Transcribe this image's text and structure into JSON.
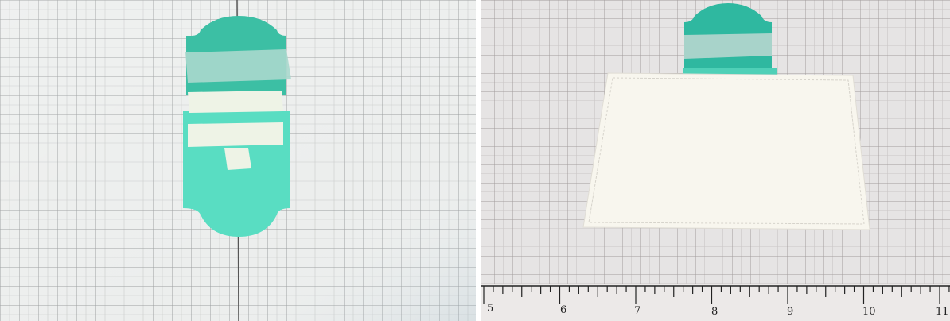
{
  "ruler": {
    "labels": [
      "5",
      "6",
      "7",
      "8",
      "9",
      "10",
      "11"
    ]
  }
}
